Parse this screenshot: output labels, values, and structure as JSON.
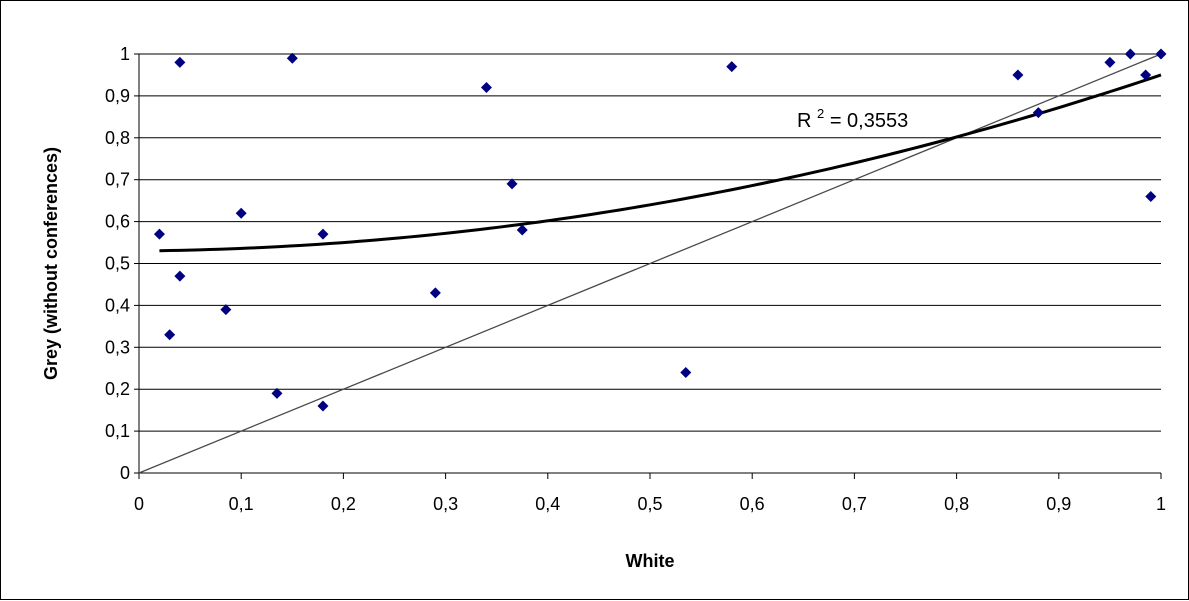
{
  "chart_data": {
    "type": "scatter",
    "title": "",
    "xlabel": "White",
    "ylabel": "Grey (without conferences)",
    "xlim": [
      0,
      1
    ],
    "ylim": [
      0,
      1
    ],
    "x_ticks": [
      "0",
      "0,1",
      "0,2",
      "0,3",
      "0,4",
      "0,5",
      "0,6",
      "0,7",
      "0,8",
      "0,9",
      "1"
    ],
    "y_ticks": [
      "0",
      "0,1",
      "0,2",
      "0,3",
      "0,4",
      "0,5",
      "0,6",
      "0,7",
      "0,8",
      "0,9",
      "1"
    ],
    "grid": "horizontal",
    "legend": "none",
    "points": [
      {
        "x": 0.02,
        "y": 0.57
      },
      {
        "x": 0.03,
        "y": 0.33
      },
      {
        "x": 0.04,
        "y": 0.98
      },
      {
        "x": 0.04,
        "y": 0.47
      },
      {
        "x": 0.085,
        "y": 0.39
      },
      {
        "x": 0.1,
        "y": 0.62
      },
      {
        "x": 0.135,
        "y": 0.19
      },
      {
        "x": 0.15,
        "y": 0.99
      },
      {
        "x": 0.18,
        "y": 0.57
      },
      {
        "x": 0.18,
        "y": 0.16
      },
      {
        "x": 0.29,
        "y": 0.43
      },
      {
        "x": 0.34,
        "y": 0.92
      },
      {
        "x": 0.365,
        "y": 0.69
      },
      {
        "x": 0.375,
        "y": 0.58
      },
      {
        "x": 0.535,
        "y": 0.24
      },
      {
        "x": 0.58,
        "y": 0.97
      },
      {
        "x": 0.86,
        "y": 0.95
      },
      {
        "x": 0.88,
        "y": 0.86
      },
      {
        "x": 0.95,
        "y": 0.98
      },
      {
        "x": 0.97,
        "y": 1.0
      },
      {
        "x": 0.985,
        "y": 0.95
      },
      {
        "x": 0.99,
        "y": 0.66
      },
      {
        "x": 1.0,
        "y": 1.0
      }
    ],
    "trendline": {
      "type": "polynomial",
      "coefficients": [
        0.53,
        0.02,
        0.4
      ],
      "x_range": [
        0.02,
        1.0
      ]
    },
    "reference_line": {
      "from": [
        0,
        0
      ],
      "to": [
        1,
        1
      ]
    },
    "annotation": {
      "prefix": "R",
      "superscript": "2",
      "text": " = 0,3553"
    },
    "colors": {
      "points": "#000080",
      "trendline": "#000000",
      "reference": "#4a4a4a",
      "grid": "#000000"
    }
  }
}
